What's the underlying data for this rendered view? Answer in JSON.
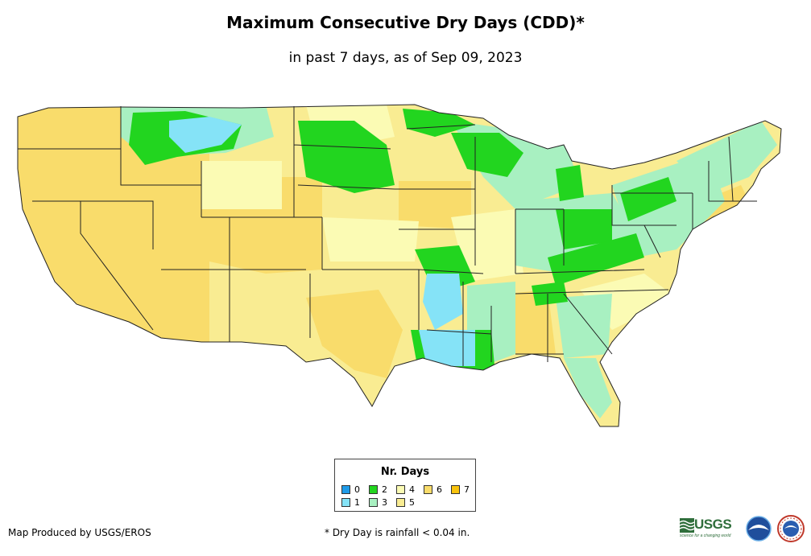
{
  "title": "Maximum Consecutive Dry Days (CDD)*",
  "subtitle": "in past 7 days, as of Sep 09, 2023",
  "legend": {
    "title": "Nr. Days",
    "items": [
      {
        "label": "0",
        "color": "#1e9be8"
      },
      {
        "label": "1",
        "color": "#85e3f7"
      },
      {
        "label": "2",
        "color": "#22d51f"
      },
      {
        "label": "3",
        "color": "#a8f0c1"
      },
      {
        "label": "4",
        "color": "#fbfbb4"
      },
      {
        "label": "5",
        "color": "#f9ec92"
      },
      {
        "label": "6",
        "color": "#f9dc6b"
      },
      {
        "label": "7",
        "color": "#f8c30d"
      }
    ]
  },
  "credit": "Map Produced by USGS/EROS",
  "footnote": "* Dry Day is rainfall < 0.04 in.",
  "logos": {
    "usgs": "USGS",
    "usgs_tagline": "science for a changing world",
    "noaa": "NOAA",
    "nws": "National Weather Service"
  },
  "colors": {
    "state_border": "#222222",
    "background": "#ffffff"
  }
}
